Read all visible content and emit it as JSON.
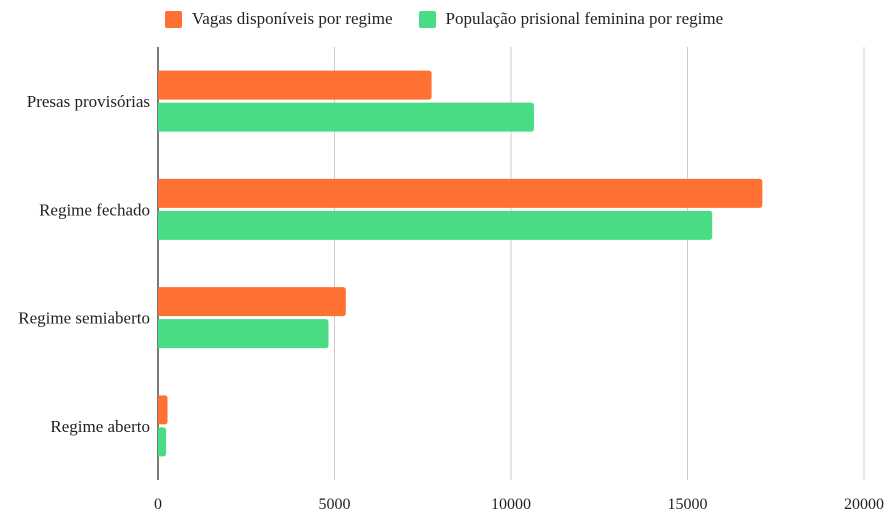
{
  "chart_data": {
    "type": "bar",
    "orientation": "horizontal",
    "categories": [
      "Presas provisórias",
      "Regime fechado",
      "Regime semiaberto",
      "Regime aberto"
    ],
    "series": [
      {
        "name": "Vagas disponíveis por regime",
        "color": "#ff7033",
        "values": [
          7750,
          17120,
          5320,
          270
        ]
      },
      {
        "name": "População prisional feminina por regime",
        "color": "#4adc84",
        "values": [
          10650,
          15700,
          4830,
          230
        ]
      }
    ],
    "xlim": [
      0,
      20000
    ],
    "xticks": [
      "0",
      "5000",
      "10000",
      "15000",
      "20000"
    ],
    "grid": "vertical",
    "legend_position": "top"
  }
}
